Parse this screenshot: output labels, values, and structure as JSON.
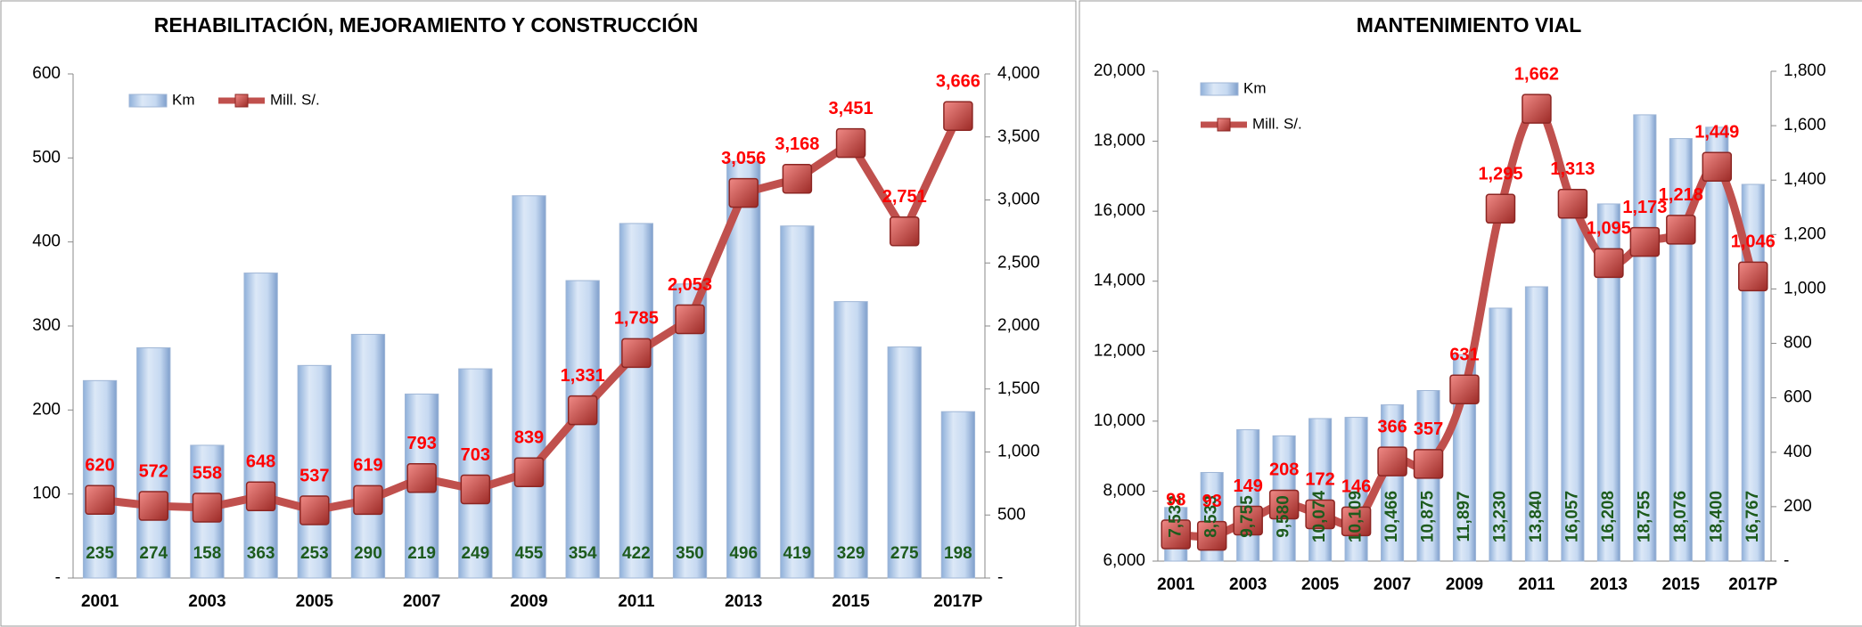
{
  "chart_data": [
    {
      "type": "bar_line",
      "title": "REHABILITACIÓN, MEJORAMIENTO Y CONSTRUCCIÓN",
      "categories": [
        "2001",
        null,
        "2003",
        null,
        "2005",
        null,
        "2007",
        null,
        "2009",
        null,
        "2011",
        null,
        "2013",
        null,
        "2015",
        null,
        "2017P"
      ],
      "series": [
        {
          "name": "Km",
          "type": "bar",
          "color": "#c6d9f1",
          "values": [
            235,
            274,
            158,
            363,
            253,
            290,
            219,
            249,
            455,
            354,
            422,
            350,
            496,
            419,
            329,
            275,
            198
          ]
        },
        {
          "name": "Mill. S/.",
          "type": "line",
          "axis": "y2",
          "color": "#c0504d",
          "values": [
            620,
            572,
            558,
            648,
            537,
            619,
            793,
            703,
            839,
            1331,
            1785,
            2053,
            3056,
            3168,
            3451,
            2751,
            3666
          ],
          "value_labels": [
            "620",
            "572",
            "558",
            "648",
            "537",
            "619",
            "793",
            "703",
            "839",
            "1,331",
            "1,785",
            "2,053",
            "3,056",
            "3,168",
            "3,451",
            "2,751",
            "3,666"
          ]
        }
      ],
      "ylim": [
        0,
        600
      ],
      "yticks": [
        {
          "value": 0,
          "label": "-"
        },
        100,
        200,
        300,
        400,
        500,
        600
      ],
      "y2lim": [
        0,
        4000
      ],
      "y2ticks": [
        {
          "value": 0,
          "label": "-"
        },
        500,
        {
          "value": 1000,
          "label": "1,000"
        },
        {
          "value": 1500,
          "label": "1,500"
        },
        {
          "value": 2000,
          "label": "2,000"
        },
        {
          "value": 2500,
          "label": "2,500"
        },
        {
          "value": 3000,
          "label": "3,000"
        },
        {
          "value": 3500,
          "label": "3,500"
        },
        {
          "value": 4000,
          "label": "4,000"
        }
      ],
      "smooth": false
    },
    {
      "type": "bar_line",
      "title": "MANTENIMIENTO VIAL",
      "categories": [
        "2001",
        null,
        "2003",
        null,
        "2005",
        null,
        "2007",
        null,
        "2009",
        null,
        "2011",
        null,
        "2013",
        null,
        "2015",
        null,
        "2017P"
      ],
      "series": [
        {
          "name": "Km",
          "type": "bar",
          "color": "#c6d9f1",
          "values": [
            7532,
            8533,
            9755,
            9580,
            10074,
            10109,
            10466,
            10875,
            11897,
            13230,
            13840,
            16057,
            16208,
            18755,
            18076,
            18400,
            16767
          ],
          "value_labels": [
            "7,532",
            "8,533",
            "9,755",
            "9,580",
            "10,074",
            "10,109",
            "10,466",
            "10,875",
            "11,897",
            "13,230",
            "13,840",
            "16,057",
            "16,208",
            "18,755",
            "18,076",
            "18,400",
            "16,767"
          ]
        },
        {
          "name": "Mill. S/.",
          "type": "line",
          "axis": "y2",
          "color": "#c0504d",
          "values": [
            98,
            93,
            149,
            208,
            172,
            146,
            366,
            357,
            631,
            1295,
            1662,
            1313,
            1095,
            1173,
            1218,
            1449,
            1046
          ],
          "value_labels": [
            "98",
            "93",
            "149",
            "208",
            "172",
            "146",
            "366",
            "357",
            "631",
            "1,295",
            "1,662",
            "1,313",
            "1,095",
            "1,173",
            "1,218",
            "1,449",
            "1,046"
          ]
        }
      ],
      "ylim": [
        6000,
        20000
      ],
      "yticks": [
        {
          "value": 6000,
          "label": "6,000"
        },
        {
          "value": 8000,
          "label": "8,000"
        },
        {
          "value": 10000,
          "label": "10,000"
        },
        {
          "value": 12000,
          "label": "12,000"
        },
        {
          "value": 14000,
          "label": "14,000"
        },
        {
          "value": 16000,
          "label": "16,000"
        },
        {
          "value": 18000,
          "label": "18,000"
        },
        {
          "value": 20000,
          "label": "20,000"
        }
      ],
      "y2lim": [
        0,
        1800
      ],
      "y2ticks": [
        {
          "value": 0,
          "label": "-"
        },
        200,
        400,
        600,
        800,
        {
          "value": 1000,
          "label": "1,000"
        },
        {
          "value": 1200,
          "label": "1,200"
        },
        {
          "value": 1400,
          "label": "1,400"
        },
        {
          "value": 1600,
          "label": "1,600"
        },
        {
          "value": 1800,
          "label": "1,800"
        }
      ],
      "smooth": true
    }
  ]
}
